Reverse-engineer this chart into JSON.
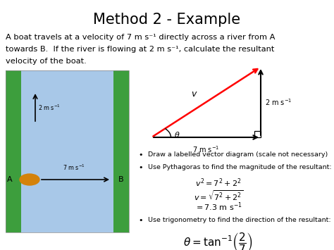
{
  "title": "Method 2 - Example",
  "body_line1": "A boat travels at a velocity of 7 m s⁻¹ directly across a river from A",
  "body_line2": "towards B.  If the river is flowing at 2 m s⁻¹, calculate the resultant",
  "body_line3": "velocity of the boat.",
  "background_color": "#ffffff",
  "river_color": "#a8c8e8",
  "bank_color": "#3d9e3d",
  "bullet1": "Draw a labelled vector diagram (scale not necessary)",
  "bullet2": "Use Pythagoras to find the magnitude of the resultant:",
  "bullet3": "Use trigonometry to find the direction of the resultant:",
  "eq1": "$v^2 = 7^2 + 2^2$",
  "eq2": "$v = \\sqrt{7^2 + 2^2}$",
  "eq3": "$= 7.3\\ \\mathrm{m\\ s^{-1}}$",
  "eq4": "$\\theta = \\tan^{-1}\\!\\left(\\dfrac{2}{7}\\right)$"
}
